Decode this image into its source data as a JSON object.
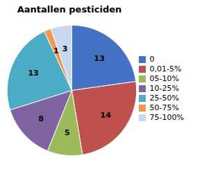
{
  "chart_data": {
    "type": "pie",
    "title": "Aantallen pesticiden",
    "categories": [
      "0",
      "0,01-5%",
      "05-10%",
      "10-25%",
      "25-50%",
      "50-75%",
      "75-100%"
    ],
    "values": [
      13,
      14,
      5,
      8,
      13,
      1,
      3
    ],
    "colors": [
      "#4472C4",
      "#C0504D",
      "#9BBB59",
      "#8064A2",
      "#4BACC6",
      "#F79646",
      "#C6D9F1"
    ],
    "data_labels": true,
    "legend": "right"
  }
}
